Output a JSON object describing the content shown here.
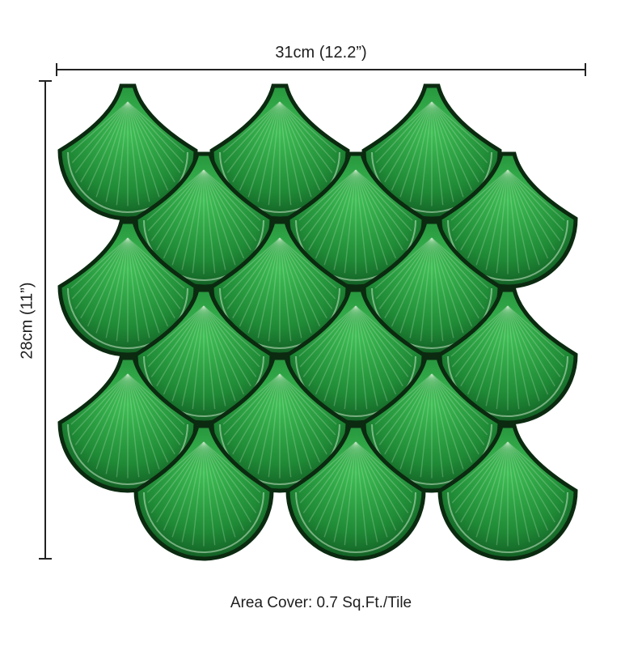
{
  "dimensions": {
    "width_label": "31cm (12.2”)",
    "height_label": "28cm (11”)"
  },
  "area_cover_label": "Area Cover: 0.7 Sq.Ft./Tile",
  "tile": {
    "pattern": "fish-scale",
    "rows": 6,
    "colors": {
      "dark": "#0d4a1c",
      "mid": "#1f8a36",
      "light": "#3fbf55",
      "outline": "#0b2a10",
      "rim": "#c8e6c9"
    }
  }
}
